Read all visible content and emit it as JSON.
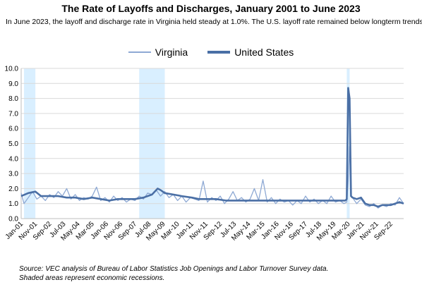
{
  "chart_data": {
    "type": "line",
    "title": "The Rate of Layoffs and Discharges, January 2001 to June 2023",
    "subtitle": "In June 2023, the layoff and discharge rate in Virginia held steady at 1.0%. The U.S. layoff rate remained below longterm trends.",
    "source_note": "Source: VEC analysis of Bureau of Labor Statistics Job Openings and Labor Turnover Survey data.",
    "recession_note": "Shaded areas represent economic recessions.",
    "xlabel": "",
    "ylabel": "",
    "ylim": [
      0,
      10
    ],
    "y_ticks": [
      "0.0",
      "1.0",
      "2.0",
      "3.0",
      "4.0",
      "5.0",
      "6.0",
      "7.0",
      "8.0",
      "9.0",
      "10.0"
    ],
    "x_ticks": [
      "Jan-01",
      "Nov-01",
      "Sep-02",
      "Jul-03",
      "May-04",
      "Mar-05",
      "Jan-06",
      "Nov-06",
      "Sep-07",
      "Jul-08",
      "May-09",
      "Mar-10",
      "Jan-11",
      "Nov-11",
      "Sep-12",
      "Jul-13",
      "May-14",
      "Mar-15",
      "Jan-16",
      "Nov-16",
      "Sep-17",
      "Jul-18",
      "May-19",
      "Mar-20",
      "Jan-21",
      "Nov-21",
      "Sep-22"
    ],
    "recessions": [
      {
        "start": "2001-03",
        "end": "2001-11"
      },
      {
        "start": "2007-12",
        "end": "2009-06"
      },
      {
        "start": "2020-02",
        "end": "2020-04"
      }
    ],
    "legend_position": "top",
    "grid": true,
    "x_unit": "month",
    "series": [
      {
        "name": "Virginia",
        "color": "#8ea9d4",
        "points": [
          [
            "2001-01",
            1.7
          ],
          [
            "2001-03",
            1.0
          ],
          [
            "2001-06",
            1.4
          ],
          [
            "2001-09",
            1.8
          ],
          [
            "2001-12",
            1.3
          ],
          [
            "2002-03",
            1.5
          ],
          [
            "2002-06",
            1.2
          ],
          [
            "2002-09",
            1.6
          ],
          [
            "2002-12",
            1.4
          ],
          [
            "2003-03",
            1.8
          ],
          [
            "2003-06",
            1.5
          ],
          [
            "2003-09",
            2.0
          ],
          [
            "2003-12",
            1.3
          ],
          [
            "2004-03",
            1.6
          ],
          [
            "2004-06",
            1.2
          ],
          [
            "2004-09",
            1.4
          ],
          [
            "2004-12",
            1.3
          ],
          [
            "2005-03",
            1.5
          ],
          [
            "2005-06",
            2.1
          ],
          [
            "2005-09",
            1.2
          ],
          [
            "2005-12",
            1.4
          ],
          [
            "2006-03",
            1.1
          ],
          [
            "2006-06",
            1.5
          ],
          [
            "2006-09",
            1.2
          ],
          [
            "2006-12",
            1.4
          ],
          [
            "2007-03",
            1.1
          ],
          [
            "2007-06",
            1.3
          ],
          [
            "2007-09",
            1.2
          ],
          [
            "2007-12",
            1.5
          ],
          [
            "2008-03",
            1.3
          ],
          [
            "2008-06",
            1.7
          ],
          [
            "2008-09",
            1.6
          ],
          [
            "2008-12",
            1.9
          ],
          [
            "2009-03",
            1.5
          ],
          [
            "2009-06",
            1.8
          ],
          [
            "2009-09",
            1.4
          ],
          [
            "2009-12",
            1.6
          ],
          [
            "2010-03",
            1.2
          ],
          [
            "2010-06",
            1.5
          ],
          [
            "2010-09",
            1.1
          ],
          [
            "2010-12",
            1.4
          ],
          [
            "2011-03",
            1.3
          ],
          [
            "2011-06",
            1.2
          ],
          [
            "2011-09",
            2.5
          ],
          [
            "2011-12",
            1.1
          ],
          [
            "2012-03",
            1.4
          ],
          [
            "2012-06",
            1.2
          ],
          [
            "2012-09",
            1.5
          ],
          [
            "2012-12",
            1.0
          ],
          [
            "2013-03",
            1.3
          ],
          [
            "2013-06",
            1.8
          ],
          [
            "2013-09",
            1.2
          ],
          [
            "2013-12",
            1.4
          ],
          [
            "2014-03",
            1.1
          ],
          [
            "2014-06",
            1.3
          ],
          [
            "2014-09",
            2.0
          ],
          [
            "2014-12",
            1.2
          ],
          [
            "2015-03",
            2.6
          ],
          [
            "2015-06",
            1.1
          ],
          [
            "2015-09",
            1.4
          ],
          [
            "2015-12",
            1.0
          ],
          [
            "2016-03",
            1.3
          ],
          [
            "2016-06",
            1.1
          ],
          [
            "2016-09",
            1.2
          ],
          [
            "2016-12",
            0.9
          ],
          [
            "2017-03",
            1.2
          ],
          [
            "2017-06",
            1.0
          ],
          [
            "2017-09",
            1.5
          ],
          [
            "2017-12",
            1.1
          ],
          [
            "2018-03",
            1.3
          ],
          [
            "2018-06",
            1.0
          ],
          [
            "2018-09",
            1.2
          ],
          [
            "2018-12",
            1.0
          ],
          [
            "2019-03",
            1.5
          ],
          [
            "2019-06",
            1.1
          ],
          [
            "2019-09",
            1.2
          ],
          [
            "2019-12",
            1.0
          ],
          [
            "2020-02",
            1.1
          ],
          [
            "2020-03",
            2.5
          ],
          [
            "2020-04",
            4.8
          ],
          [
            "2020-05",
            1.5
          ],
          [
            "2020-06",
            1.4
          ],
          [
            "2020-09",
            1.0
          ],
          [
            "2020-12",
            1.3
          ],
          [
            "2021-03",
            0.9
          ],
          [
            "2021-06",
            0.8
          ],
          [
            "2021-09",
            1.0
          ],
          [
            "2021-12",
            0.7
          ],
          [
            "2022-03",
            0.9
          ],
          [
            "2022-06",
            0.8
          ],
          [
            "2022-09",
            1.0
          ],
          [
            "2022-12",
            0.9
          ],
          [
            "2023-03",
            1.4
          ],
          [
            "2023-06",
            1.0
          ]
        ]
      },
      {
        "name": "United States",
        "color": "#4a6fa5",
        "points": [
          [
            "2001-01",
            1.5
          ],
          [
            "2001-06",
            1.7
          ],
          [
            "2001-11",
            1.8
          ],
          [
            "2002-03",
            1.5
          ],
          [
            "2002-09",
            1.5
          ],
          [
            "2003-03",
            1.5
          ],
          [
            "2003-09",
            1.4
          ],
          [
            "2004-03",
            1.4
          ],
          [
            "2004-09",
            1.3
          ],
          [
            "2005-03",
            1.4
          ],
          [
            "2005-09",
            1.3
          ],
          [
            "2006-03",
            1.2
          ],
          [
            "2006-09",
            1.3
          ],
          [
            "2007-03",
            1.3
          ],
          [
            "2007-09",
            1.3
          ],
          [
            "2008-03",
            1.4
          ],
          [
            "2008-09",
            1.6
          ],
          [
            "2009-01",
            2.0
          ],
          [
            "2009-03",
            1.9
          ],
          [
            "2009-06",
            1.7
          ],
          [
            "2009-12",
            1.6
          ],
          [
            "2010-06",
            1.5
          ],
          [
            "2011-01",
            1.4
          ],
          [
            "2011-06",
            1.3
          ],
          [
            "2012-01",
            1.3
          ],
          [
            "2012-06",
            1.3
          ],
          [
            "2013-01",
            1.2
          ],
          [
            "2013-06",
            1.2
          ],
          [
            "2014-01",
            1.2
          ],
          [
            "2014-06",
            1.2
          ],
          [
            "2015-01",
            1.2
          ],
          [
            "2015-06",
            1.2
          ],
          [
            "2016-01",
            1.2
          ],
          [
            "2016-06",
            1.2
          ],
          [
            "2017-01",
            1.2
          ],
          [
            "2017-06",
            1.2
          ],
          [
            "2018-01",
            1.2
          ],
          [
            "2018-06",
            1.2
          ],
          [
            "2019-01",
            1.2
          ],
          [
            "2019-06",
            1.2
          ],
          [
            "2020-01",
            1.2
          ],
          [
            "2020-02",
            1.3
          ],
          [
            "2020-03",
            8.7
          ],
          [
            "2020-04",
            8.0
          ],
          [
            "2020-05",
            1.5
          ],
          [
            "2020-06",
            1.4
          ],
          [
            "2020-09",
            1.3
          ],
          [
            "2020-12",
            1.4
          ],
          [
            "2021-03",
            1.0
          ],
          [
            "2021-06",
            0.9
          ],
          [
            "2021-09",
            0.9
          ],
          [
            "2021-12",
            0.8
          ],
          [
            "2022-03",
            0.9
          ],
          [
            "2022-06",
            0.9
          ],
          [
            "2022-09",
            0.9
          ],
          [
            "2022-12",
            1.0
          ],
          [
            "2023-03",
            1.1
          ],
          [
            "2023-06",
            1.0
          ]
        ]
      }
    ]
  }
}
